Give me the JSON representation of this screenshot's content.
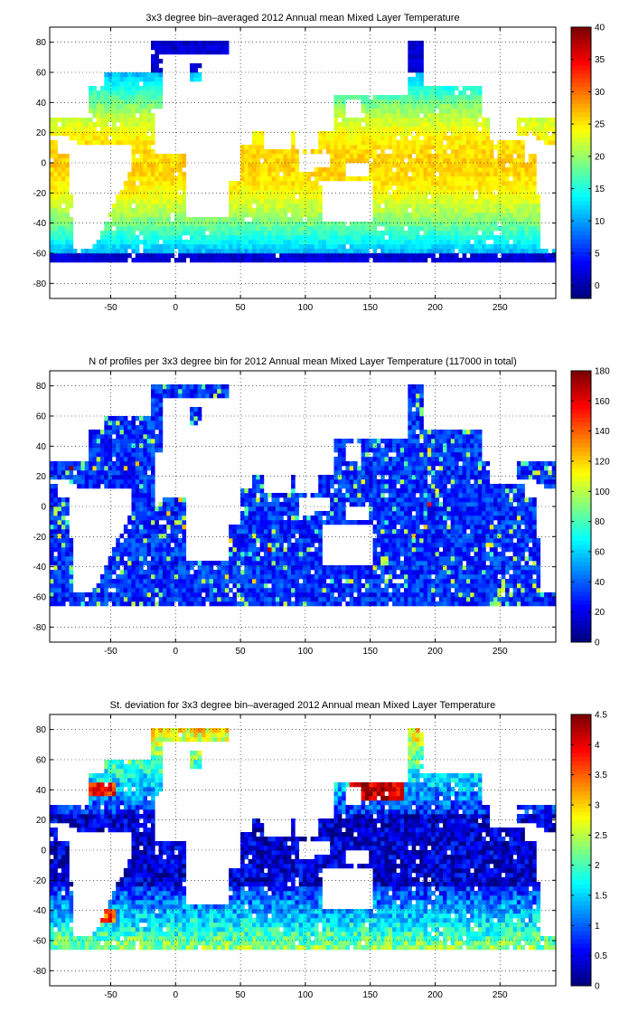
{
  "figure": {
    "background": "#ffffff",
    "colormap": "jet",
    "land_color": "#ffffff",
    "coastline_color": "#000000"
  },
  "chart_data": [
    {
      "type": "heatmap",
      "title": "3x3 degree bin–averaged 2012 Annual mean Mixed Layer Temperature",
      "xlabel": "",
      "ylabel": "",
      "xlim": [
        -97,
        293
      ],
      "ylim": [
        -90,
        90
      ],
      "grid": true,
      "x_ticks": [
        -50,
        0,
        50,
        100,
        150,
        200,
        250
      ],
      "y_ticks": [
        -80,
        -60,
        -40,
        -20,
        0,
        20,
        40,
        60,
        80
      ],
      "colorbar": {
        "min": -2,
        "max": 40,
        "ticks": [
          0,
          5,
          10,
          15,
          20,
          25,
          30,
          35,
          40
        ]
      },
      "field": "temperature",
      "bin_size_deg": 3,
      "approx_values": {
        "tropical_pacific": 29,
        "equator": 28,
        "lat_40": 16,
        "lat_minus_60": 2
      }
    },
    {
      "type": "heatmap",
      "title": "N of profiles per 3x3 degree bin for 2012 Annual mean Mixed Layer Temperature  (117000 in total)",
      "xlabel": "",
      "ylabel": "",
      "xlim": [
        -97,
        293
      ],
      "ylim": [
        -90,
        90
      ],
      "grid": true,
      "x_ticks": [
        -50,
        0,
        50,
        100,
        150,
        200,
        250
      ],
      "y_ticks": [
        -80,
        -60,
        -40,
        -20,
        0,
        20,
        40,
        60,
        80
      ],
      "colorbar": {
        "min": 0,
        "max": 180,
        "ticks": [
          0,
          20,
          40,
          60,
          80,
          100,
          120,
          140,
          160,
          180
        ]
      },
      "field": "count",
      "total_profiles": 117000,
      "approx_values": {
        "typical": 25,
        "max_hotspots": 160
      }
    },
    {
      "type": "heatmap",
      "title": "St. deviation for 3x3 degree bin–averaged 2012 Annual mean Mixed Layer Temperature",
      "xlabel": "",
      "ylabel": "",
      "xlim": [
        -97,
        293
      ],
      "ylim": [
        -90,
        90
      ],
      "grid": true,
      "x_ticks": [
        -50,
        0,
        50,
        100,
        150,
        200,
        250
      ],
      "y_ticks": [
        -80,
        -60,
        -40,
        -20,
        0,
        20,
        40,
        60,
        80
      ],
      "colorbar": {
        "min": 0,
        "max": 4.5,
        "ticks": [
          0,
          0.5,
          1,
          1.5,
          2,
          2.5,
          3,
          3.5,
          4,
          4.5
        ]
      },
      "field": "stdev",
      "approx_values": {
        "tropics": 0.4,
        "mid_latitudes": 1.5,
        "kuroshio_gulfstream": 4.3
      }
    }
  ]
}
